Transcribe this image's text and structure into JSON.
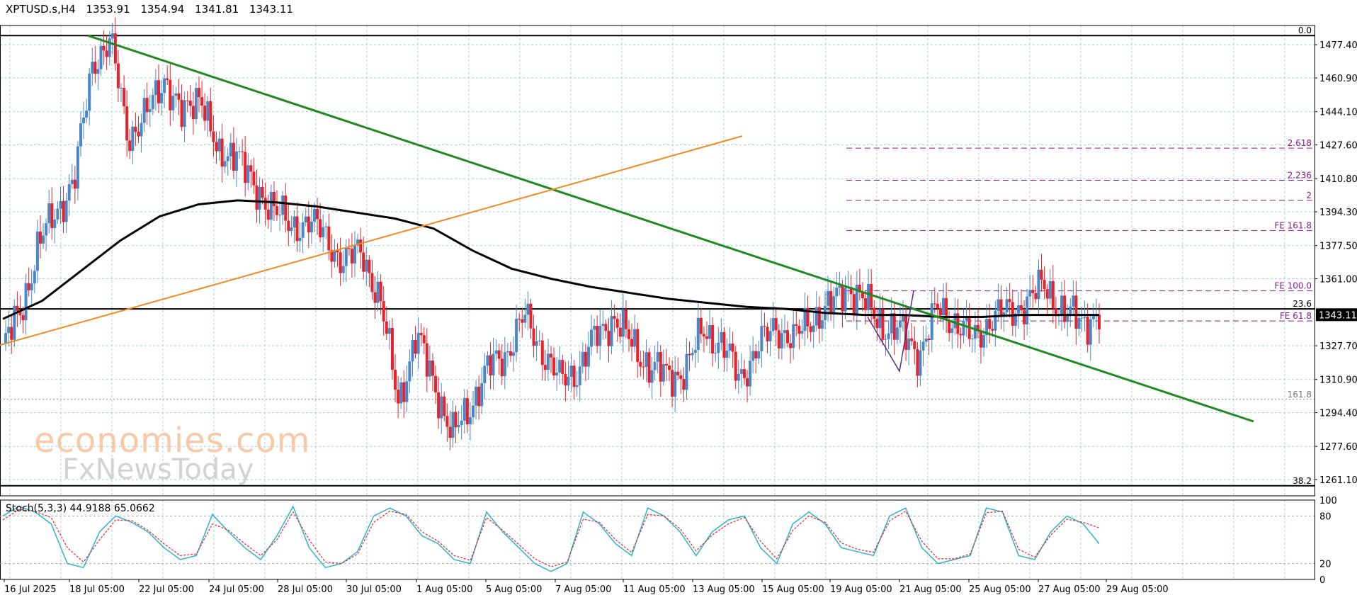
{
  "header": {
    "symbol": "XPTUSD.s,H4",
    "open": "1353.91",
    "high": "1354.94",
    "low": "1341.81",
    "close": "1343.11"
  },
  "watermark": {
    "line1": "economies.com",
    "line2": "FxNewsToday"
  },
  "colors": {
    "bull": "#4a86c8",
    "bear": "#e8212a",
    "downtrend": "#1f8a1f",
    "uptrend": "#f08a1e",
    "fib": "#8b1a8b",
    "ma": "#000000",
    "grid": "#9fd0d6",
    "stoch_main": "#29b5c9",
    "stoch_signal": "#e8212a"
  },
  "chart_data": [
    {
      "type": "candlestick",
      "symbol": "XPTUSD.s",
      "timeframe": "H4",
      "ylim": [
        1253,
        1487
      ],
      "y_ticks": [
        "1477.40",
        "1460.90",
        "1444.10",
        "1427.60",
        "1410.80",
        "1394.30",
        "1377.50",
        "1361.00",
        "1327.70",
        "1310.90",
        "1294.40",
        "1277.60",
        "1261.10"
      ],
      "current_price": "1343.11",
      "x_ticks": [
        "16 Jul 2025",
        "18 Jul 05:00",
        "22 Jul 05:00",
        "24 Jul 05:00",
        "28 Jul 05:00",
        "30 Jul 05:00",
        "1 Aug 05:00",
        "5 Aug 05:00",
        "7 Aug 05:00",
        "11 Aug 05:00",
        "13 Aug 05:00",
        "15 Aug 05:00",
        "19 Aug 05:00",
        "21 Aug 05:00",
        "25 Aug 05:00",
        "27 Aug 05:00",
        "29 Aug 05:00"
      ],
      "close_path": [
        1326,
        1345,
        1378,
        1395,
        1410,
        1470,
        1478,
        1432,
        1442,
        1462,
        1440,
        1456,
        1418,
        1428,
        1402,
        1400,
        1384,
        1392,
        1380,
        1370,
        1374,
        1350,
        1300,
        1332,
        1310,
        1282,
        1298,
        1316,
        1324,
        1342,
        1326,
        1310,
        1316,
        1332,
        1342,
        1328,
        1318,
        1312,
        1316,
        1336,
        1328,
        1312,
        1326,
        1338,
        1330,
        1342,
        1346,
        1358,
        1348,
        1338,
        1334,
        1324,
        1346,
        1340,
        1330,
        1342,
        1344,
        1350,
        1358,
        1344,
        1340,
        1343
      ],
      "moving_average": [
        1341,
        1350,
        1365,
        1380,
        1392,
        1398,
        1400,
        1399,
        1397,
        1394,
        1391,
        1386,
        1375,
        1366,
        1361,
        1357,
        1354,
        1351,
        1349,
        1347,
        1346,
        1344,
        1343,
        1343,
        1342,
        1342,
        1343,
        1343,
        1343
      ],
      "fib_levels": [
        {
          "label": "0.0",
          "value": 1482
        },
        {
          "label": "2.618",
          "value": 1426
        },
        {
          "label": "2.236",
          "value": 1410
        },
        {
          "label": "2",
          "value": 1400
        },
        {
          "label": "FE 161.8",
          "value": 1385
        },
        {
          "label": "FE 100.0",
          "value": 1355
        },
        {
          "label": "23.6",
          "value": 1346
        },
        {
          "label": "FE 61.8",
          "value": 1340
        },
        {
          "label": "161.8",
          "value": 1301
        },
        {
          "label": "38.2",
          "value": 1258
        }
      ],
      "trendlines": [
        {
          "name": "downtrend",
          "from": [
            "18 Jul 05:00",
            1482
          ],
          "to": [
            "29 Aug 05:00+",
            1290
          ]
        },
        {
          "name": "uptrend",
          "from": [
            "16 Jul 2025",
            1328
          ],
          "to": [
            "15 Aug 05:00-",
            1432
          ]
        }
      ]
    },
    {
      "type": "line",
      "title": "Stoch(5,3,3) 44.9188 65.0662",
      "ylim": [
        0,
        100
      ],
      "y_ticks": [
        "100",
        "80",
        "20",
        "0"
      ],
      "series": [
        {
          "name": "main",
          "values": [
            80,
            92,
            85,
            70,
            20,
            15,
            60,
            80,
            72,
            60,
            40,
            25,
            30,
            82,
            60,
            40,
            25,
            55,
            92,
            40,
            15,
            20,
            35,
            80,
            90,
            80,
            55,
            45,
            25,
            20,
            85,
            60,
            40,
            20,
            10,
            20,
            85,
            70,
            45,
            30,
            90,
            80,
            60,
            30,
            60,
            75,
            80,
            40,
            20,
            70,
            85,
            70,
            40,
            35,
            30,
            80,
            90,
            40,
            20,
            25,
            30,
            90,
            85,
            30,
            25,
            60,
            80,
            70,
            45
          ]
        },
        {
          "name": "signal",
          "values": [
            75,
            88,
            86,
            78,
            40,
            22,
            50,
            75,
            74,
            62,
            45,
            30,
            32,
            70,
            62,
            45,
            30,
            50,
            85,
            50,
            22,
            20,
            32,
            72,
            86,
            82,
            60,
            48,
            30,
            24,
            78,
            62,
            44,
            26,
            16,
            22,
            76,
            72,
            50,
            34,
            82,
            80,
            64,
            36,
            56,
            70,
            78,
            48,
            26,
            62,
            80,
            72,
            46,
            38,
            34,
            74,
            86,
            48,
            26,
            26,
            32,
            84,
            86,
            38,
            28,
            56,
            76,
            72,
            65
          ]
        }
      ]
    }
  ]
}
